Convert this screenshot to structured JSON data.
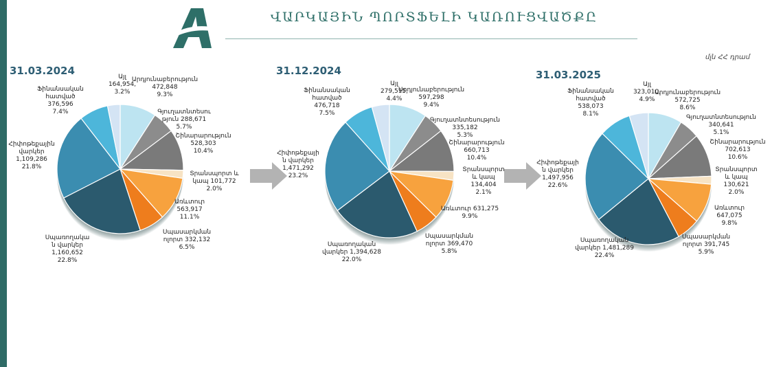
{
  "header": {
    "title": "ՎԱՐԿԱՅԻՆ ՊՈՐՏՖԵԼԻ ԿԱՌՈՒՑՎԱԾՔԸ",
    "units": "մլն ՀՀ դրամ"
  },
  "colors": {
    "accent": "#2e6f68",
    "date_text": "#2e5e74",
    "slices": [
      "#bde4f1",
      "#8c8c8c",
      "#7a7a7a",
      "#f7e3c4",
      "#f7a23e",
      "#ee7d1d",
      "#2b5a6e",
      "#3b8db0",
      "#4db6da",
      "#d4e4f4"
    ]
  },
  "chart_data": [
    {
      "type": "pie",
      "title": "31.03.2024",
      "categories": [
        "Արդյունաբերություն",
        "Գյուղատնտեսություն",
        "Շինարարություն",
        "Տրանսպորտ և կապ",
        "Առևտուր",
        "Սպասարկման ոլորտ",
        "Սպառողական վարկեր",
        "Հիփոթեքային վարկեր",
        "Ֆինանսական հատված",
        "Այլ"
      ],
      "values": [
        472848,
        288671,
        528303,
        101772,
        563917,
        332132,
        1160652,
        1109286,
        376596,
        164954
      ],
      "percents": [
        "9.3%",
        "5.7%",
        "10.4%",
        "2.0%",
        "11.1%",
        "6.5%",
        "22.8%",
        "21.8%",
        "7.4%",
        "3.2%"
      ],
      "labels": [
        [
          "Արդյունաբերություն",
          "472,848",
          "9.3%"
        ],
        [
          "Գյուղատնտեսու",
          "թյուն 288,671",
          "5.7%"
        ],
        [
          "Շինարարություն",
          "528,303",
          "10.4%"
        ],
        [
          "Տրանսպորտ և",
          "կապ 101,772",
          "2.0%"
        ],
        [
          "Առևտուր",
          "563,917",
          "11.1%"
        ],
        [
          "Սպասարկման",
          "ոլորտ 332,132",
          "6.5%"
        ],
        [
          "Սպառողակա",
          "ն վարկեր",
          "1,160,652",
          "22.8%"
        ],
        [
          "Հիփոթեքային",
          "վարկեր",
          "1,109,286",
          "21.8%"
        ],
        [
          "Ֆինանսական",
          "հատված",
          "376,596",
          "7.4%"
        ],
        [
          "Այլ",
          "164,954,",
          "3.2%"
        ]
      ]
    },
    {
      "type": "pie",
      "title": "31.12.2024",
      "categories": [
        "Արդյունաբերություն",
        "Գյուղատնտեսություն",
        "Շինարարություն",
        "Տրանսպորտ և կապ",
        "Առևտուր",
        "Սպասարկման ոլորտ",
        "Սպառողական վարկեր",
        "Հիփոթեքային վարկեր",
        "Ֆինանսական հատված",
        "Այլ"
      ],
      "values": [
        597298,
        335182,
        660713,
        134404,
        631275,
        369470,
        1394628,
        1471292,
        476718,
        279515
      ],
      "percents": [
        "9.4%",
        "5.3%",
        "10.4%",
        "2.1%",
        "9.9%",
        "5.8%",
        "22.0%",
        "23.2%",
        "7.5%",
        "4.4%"
      ],
      "labels": [
        [
          "Արդյունաբերություն",
          "597,298",
          "9.4%"
        ],
        [
          "Գյուղատնտեսություն",
          "335,182",
          "5.3%"
        ],
        [
          "Շինարարություն",
          "660,713",
          "10.4%"
        ],
        [
          "Տրանսպորտ",
          "և կապ",
          "134,404",
          "2.1%"
        ],
        [
          "Առևտուր 631,275",
          "9.9%"
        ],
        [
          "Սպասարկման",
          "ոլորտ 369,470",
          "5.8%"
        ],
        [
          "Սպառողական",
          "վարկեր 1,394,628",
          "22.0%"
        ],
        [
          "Հիփոթեքայի",
          "ն վարկեր",
          "1,471,292",
          "23.2%"
        ],
        [
          "Ֆինանսական",
          "հատված",
          "476,718",
          "7.5%"
        ],
        [
          "Այլ",
          "279,515,",
          "4.4%"
        ]
      ]
    },
    {
      "type": "pie",
      "title": "31.03.2025",
      "categories": [
        "Արդյունաբերություն",
        "Գյուղատնտեսություն",
        "Շինարարություն",
        "Տրանսպորտ և կապ",
        "Առևտուր",
        "Սպասարկման ոլորտ",
        "Սպառողական վարկեր",
        "Հիփոթեքային վարկեր",
        "Ֆինանսական հատված",
        "Այլ"
      ],
      "values": [
        572725,
        340641,
        702613,
        130621,
        647075,
        391745,
        1481289,
        1497956,
        538073,
        323010
      ],
      "percents": [
        "8.6%",
        "5.1%",
        "10.6%",
        "2.0%",
        "9.8%",
        "5.9%",
        "22.4%",
        "22.6%",
        "8.1%",
        "4.9%"
      ],
      "labels": [
        [
          "Արդյունաբերություն",
          "572,725",
          "8.6%"
        ],
        [
          "Գյուղատնտեսություն",
          "340,641",
          "5.1%"
        ],
        [
          "Շինարարություն",
          "702,613",
          "10.6%"
        ],
        [
          "Տրանսպորտ",
          "և կապ",
          "130,621",
          "2.0%"
        ],
        [
          "Առևտուր",
          "647,075",
          "9.8%"
        ],
        [
          "Սպասարկման",
          "ոլորտ 391,745",
          "5.9%"
        ],
        [
          "Սպառողական",
          "վարկեր 1,481,289",
          "22.4%"
        ],
        [
          "Հիփոթեքայի",
          "ն վարկեր",
          "1,497,956",
          "22.6%"
        ],
        [
          "Ֆինանսական",
          "հատված",
          "538,073",
          "8.1%"
        ],
        [
          "Այլ",
          "323,010,",
          "4.9%"
        ]
      ]
    }
  ]
}
